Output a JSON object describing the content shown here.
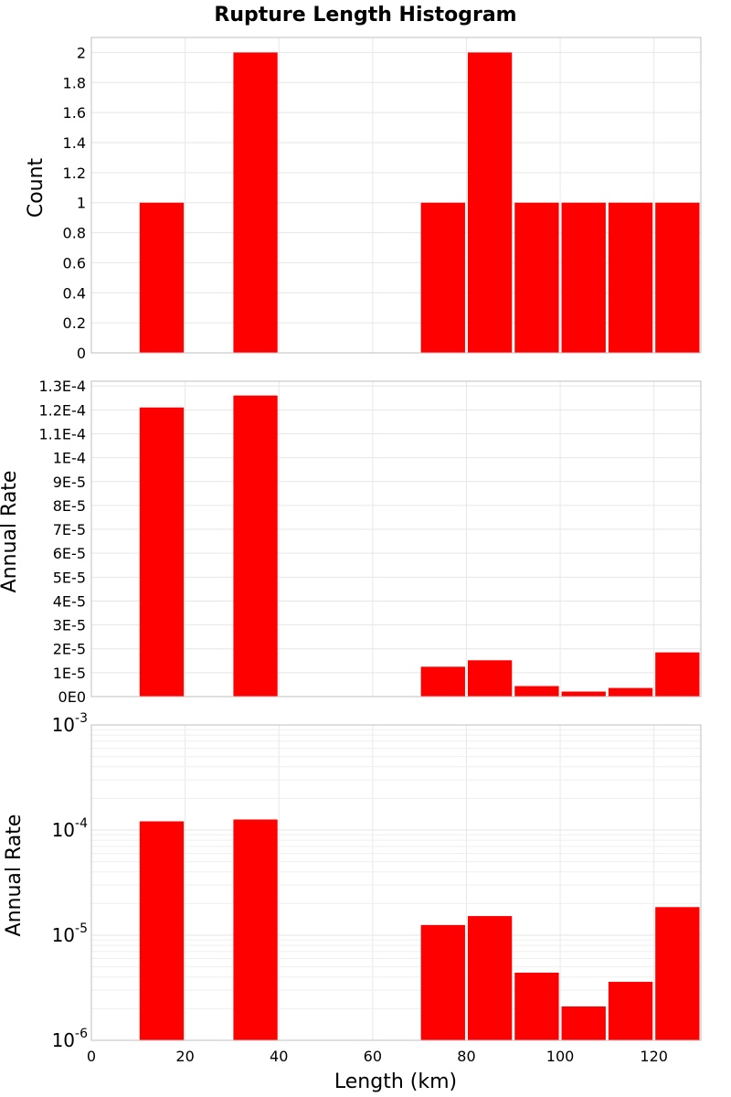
{
  "chart_data": {
    "type": "bar",
    "title": "Rupture Length Histogram",
    "xlabel": "Length (km)",
    "xlim": [
      0,
      130
    ],
    "x_ticks": [
      "0",
      "20",
      "40",
      "60",
      "80",
      "100",
      "120"
    ],
    "x_tick_values": [
      0,
      20,
      40,
      60,
      80,
      100,
      120
    ],
    "bin_width": 10,
    "bar_color": "#ff0000",
    "grid": true,
    "bins": [
      15,
      35,
      75,
      85,
      95,
      105,
      115,
      125
    ],
    "panels": [
      {
        "ylabel": "Count",
        "yscale": "linear",
        "ylim": [
          0,
          2.1
        ],
        "y_ticks": [
          "0",
          "0.2",
          "0.4",
          "0.6",
          "0.8",
          "1",
          "1.2",
          "1.4",
          "1.6",
          "1.8",
          "2"
        ],
        "y_tick_values": [
          0,
          0.2,
          0.4,
          0.6,
          0.8,
          1,
          1.2,
          1.4,
          1.6,
          1.8,
          2
        ],
        "values": [
          1,
          2,
          1,
          2,
          1,
          1,
          1,
          1
        ]
      },
      {
        "ylabel": "Annual Rate",
        "yscale": "linear",
        "ylim": [
          0,
          0.000132
        ],
        "y_ticks": [
          "0E0",
          "1E-5",
          "2E-5",
          "3E-5",
          "4E-5",
          "5E-5",
          "6E-5",
          "7E-5",
          "8E-5",
          "9E-5",
          "1E-4",
          "1.1E-4",
          "1.2E-4",
          "1.3E-4"
        ],
        "y_tick_values": [
          0,
          1e-05,
          2e-05,
          3e-05,
          4e-05,
          5e-05,
          6e-05,
          7e-05,
          8e-05,
          9e-05,
          0.0001,
          0.00011,
          0.00012,
          0.00013
        ],
        "values": [
          0.000121,
          0.000126,
          1.25e-05,
          1.52e-05,
          4.4e-06,
          2.1e-06,
          3.6e-06,
          1.85e-05
        ]
      },
      {
        "ylabel": "Annual Rate",
        "yscale": "log",
        "ylim": [
          1e-06,
          0.001
        ],
        "y_ticks": [
          {
            "base": "10",
            "exp": "-6"
          },
          {
            "base": "10",
            "exp": "-5"
          },
          {
            "base": "10",
            "exp": "-4"
          },
          {
            "base": "10",
            "exp": "-3"
          }
        ],
        "y_tick_values": [
          1e-06,
          1e-05,
          0.0001,
          0.001
        ],
        "values": [
          0.000121,
          0.000126,
          1.25e-05,
          1.52e-05,
          4.4e-06,
          2.1e-06,
          3.6e-06,
          1.85e-05
        ]
      }
    ]
  }
}
